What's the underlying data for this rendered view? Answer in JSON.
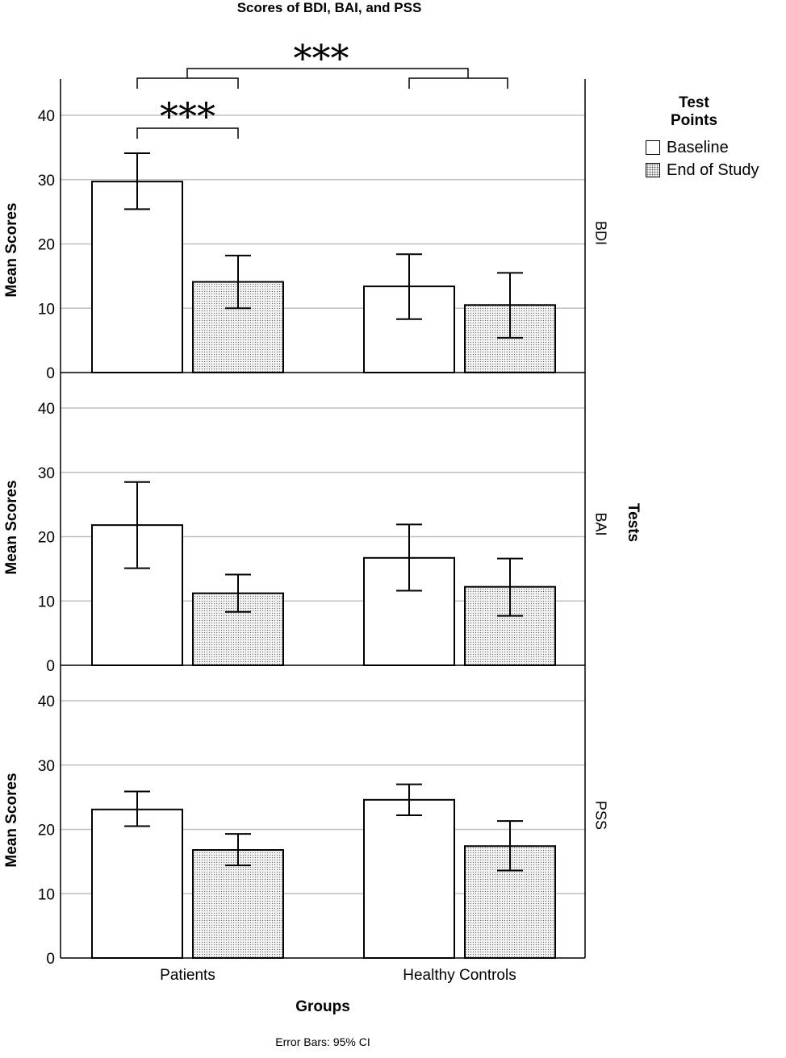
{
  "chart_data": {
    "type": "bar",
    "title": "Scores of BDI, BAI, and PSS",
    "xlabel": "Groups",
    "ylabel": "Mean Scores",
    "facet_axis_title": "Tests",
    "footnote": "Error Bars: 95% CI",
    "categories": [
      "Patients",
      "Healthy Controls"
    ],
    "legend": {
      "title_line1": "Test",
      "title_line2": "Points",
      "items": [
        "Baseline",
        "End of Study"
      ],
      "position": "top-right"
    },
    "ylim": [
      0,
      45
    ],
    "yticks": [
      0,
      10,
      20,
      30,
      40
    ],
    "grid": true,
    "panels": [
      {
        "test": "BDI",
        "series": [
          {
            "name": "Baseline",
            "values": [
              29.7,
              13.4
            ],
            "ci_low": [
              25.4,
              8.3
            ],
            "ci_high": [
              34.1,
              18.4
            ]
          },
          {
            "name": "End of Study",
            "values": [
              14.1,
              10.5
            ],
            "ci_low": [
              10.0,
              5.4
            ],
            "ci_high": [
              18.2,
              15.5
            ]
          }
        ],
        "annotations": [
          {
            "text": "***",
            "type": "bracket",
            "between": "Patients Baseline vs Patients End of Study"
          },
          {
            "text": "***",
            "type": "bracket",
            "between": "Patients vs Healthy Controls"
          }
        ]
      },
      {
        "test": "BAI",
        "series": [
          {
            "name": "Baseline",
            "values": [
              21.8,
              16.7
            ],
            "ci_low": [
              15.1,
              11.6
            ],
            "ci_high": [
              28.5,
              21.9
            ]
          },
          {
            "name": "End of Study",
            "values": [
              11.2,
              12.2
            ],
            "ci_low": [
              8.3,
              7.7
            ],
            "ci_high": [
              14.1,
              16.6
            ]
          }
        ]
      },
      {
        "test": "PSS",
        "series": [
          {
            "name": "Baseline",
            "values": [
              23.1,
              24.6
            ],
            "ci_low": [
              20.5,
              22.2
            ],
            "ci_high": [
              25.9,
              27.0
            ]
          },
          {
            "name": "End of Study",
            "values": [
              16.8,
              17.4
            ],
            "ci_low": [
              14.4,
              13.6
            ],
            "ci_high": [
              19.3,
              21.3
            ]
          }
        ]
      }
    ]
  }
}
